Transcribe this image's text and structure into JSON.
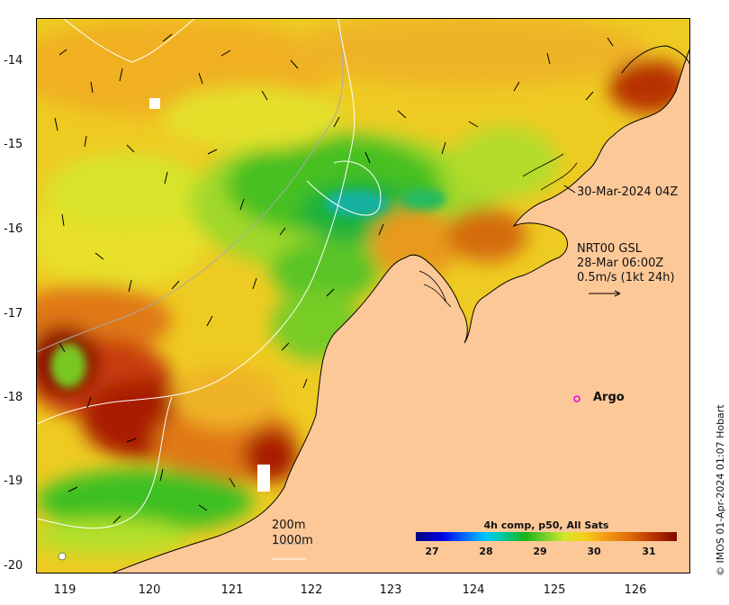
{
  "map": {
    "lon_range": [
      118.6,
      126.7
    ],
    "lat_range": [
      -20.1,
      -13.5
    ],
    "x_ticks": [
      "119",
      "120",
      "121",
      "122",
      "123",
      "124",
      "125",
      "126"
    ],
    "y_ticks": [
      "-14",
      "-15",
      "-16",
      "-17",
      "-18",
      "-19",
      "-20"
    ],
    "colors": {
      "land": "#fdc898",
      "sst_cold": "#19b419",
      "sst_mid": "#d2e628",
      "sst_warm": "#f2b41e",
      "sst_hot": "#a81c00",
      "coast": "#000000",
      "contour": "#ffffff",
      "argo_marker": "#e000e0"
    }
  },
  "annotations": {
    "date_label": "30-Mar-2024 04Z",
    "current_source": "NRT00 GSL",
    "current_time": "28-Mar 06:00Z",
    "current_scale": "0.5m/s (1kt 24h)",
    "argo_label": "Argo",
    "contour_200": "200m",
    "contour_1000": "1000m",
    "credit": "© IMOS 01-Apr-2024 01:07 Hobart"
  },
  "colorbar": {
    "title": "4h comp, p50, All Sats",
    "ticks": [
      "27",
      "28",
      "29",
      "30",
      "31"
    ]
  }
}
